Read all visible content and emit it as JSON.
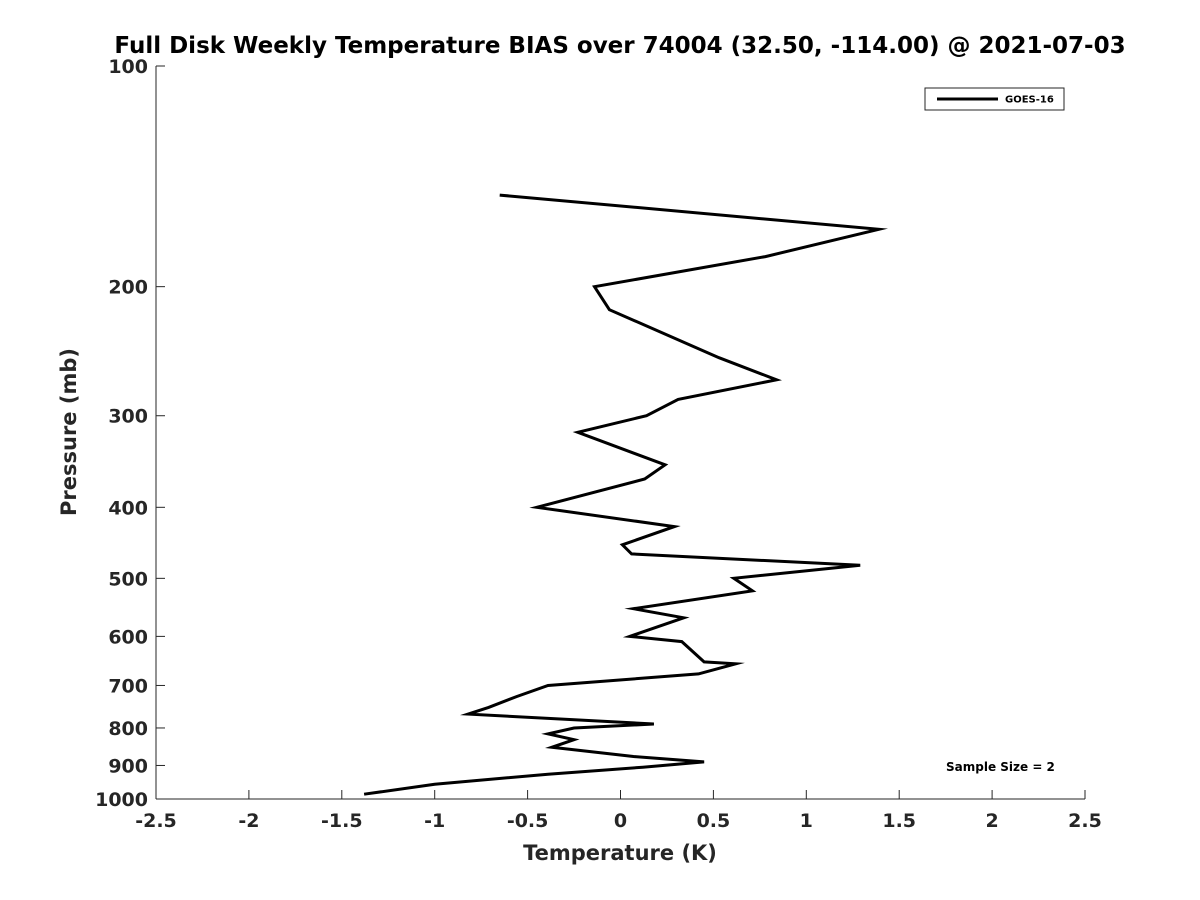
{
  "chart_data": {
    "type": "line",
    "title": "Full Disk Weekly Temperature BIAS over 74004 (32.50, -114.00) @ 2021-07-03",
    "xlabel": "Temperature (K)",
    "ylabel": "Pressure (mb)",
    "xlim": [
      -2.5,
      2.5
    ],
    "ylim": [
      100,
      1000
    ],
    "y_scale": "log",
    "y_reversed": true,
    "x_ticks": [
      "-2.5",
      "-2",
      "-1.5",
      "-1",
      "-0.5",
      "0",
      "0.5",
      "1",
      "1.5",
      "2",
      "2.5"
    ],
    "y_ticks": [
      "100",
      "200",
      "300",
      "400",
      "500",
      "600",
      "700",
      "800",
      "900",
      "1000"
    ],
    "grid": false,
    "legend": {
      "position": "top-right"
    },
    "annotation": "Sample Size = 2",
    "series": [
      {
        "name": "GOES-16",
        "color": "#000000",
        "x": [
          -0.65,
          1.39,
          0.78,
          -0.14,
          -0.06,
          0.53,
          0.84,
          0.31,
          0.14,
          -0.23,
          0.24,
          0.13,
          -0.45,
          0.29,
          0.01,
          0.06,
          1.29,
          0.61,
          0.71,
          0.07,
          0.34,
          0.05,
          0.33,
          0.45,
          0.62,
          0.42,
          -0.39,
          -0.56,
          -0.71,
          -0.82,
          0.18,
          -0.25,
          -0.39,
          -0.25,
          -0.37,
          0.07,
          0.45,
          0.12,
          -0.39,
          -1.0,
          -1.38
        ],
        "y": [
          150,
          167,
          182,
          200,
          215,
          250,
          268,
          285,
          300,
          316,
          350,
          366,
          400,
          425,
          450,
          463,
          480,
          500,
          520,
          550,
          566,
          600,
          610,
          650,
          654,
          675,
          700,
          725,
          750,
          766,
          790,
          800,
          815,
          830,
          850,
          875,
          890,
          905,
          925,
          955,
          985
        ]
      }
    ]
  }
}
